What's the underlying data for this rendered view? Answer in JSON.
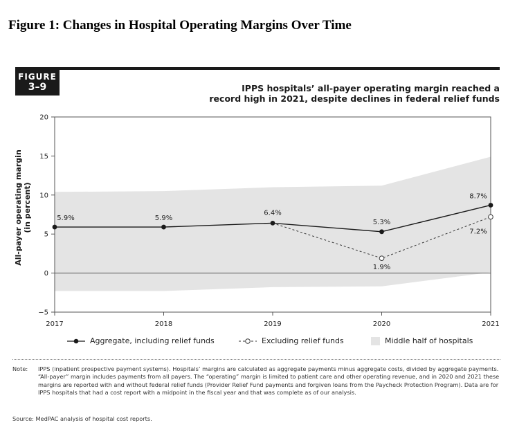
{
  "caption": "Figure 1: Changes in Hospital Operating Margins Over Time",
  "badge": {
    "line1": "FIGURE",
    "line2": "3–9"
  },
  "headline": {
    "line1": "IPPS hospitals’ all-payer operating margin reached a",
    "line2": "record high in 2021, despite declines in federal relief funds"
  },
  "colors": {
    "aggregate": "#1a1a1a",
    "excluding": "#333333",
    "band": "#e4e4e4",
    "zero_line": "#555555",
    "frame": "#555555"
  },
  "chart_data": {
    "type": "line",
    "x": [
      2017,
      2018,
      2019,
      2020,
      2021
    ],
    "xlim": [
      2017,
      2021
    ],
    "ylim": [
      -5,
      20
    ],
    "yticks": [
      -5,
      0,
      5,
      10,
      15,
      20
    ],
    "ytick_labels": [
      "−5",
      "0",
      "5",
      "10",
      "15",
      "20"
    ],
    "ylabel": [
      "All-payer operating margin",
      "(in percent)"
    ],
    "grid": false,
    "legend_position": "bottom",
    "band": {
      "name": "Middle half of hospitals",
      "upper": [
        10.4,
        10.5,
        11.0,
        11.2,
        14.9
      ],
      "lower": [
        -2.3,
        -2.3,
        -1.8,
        -1.7,
        0.1
      ]
    },
    "series": [
      {
        "name": "Aggregate, including relief funds",
        "style": "solid",
        "x": [
          2017,
          2018,
          2019,
          2020,
          2021
        ],
        "values": [
          5.9,
          5.9,
          6.4,
          5.3,
          8.7
        ],
        "labels": [
          "5.9%",
          "5.9%",
          "6.4%",
          "5.3%",
          "8.7%"
        ]
      },
      {
        "name": "Excluding relief funds",
        "style": "dashed",
        "x": [
          2019,
          2020,
          2021
        ],
        "values": [
          6.4,
          1.9,
          7.2
        ],
        "labels": [
          "",
          "1.9%",
          "7.2%"
        ]
      }
    ]
  },
  "note": {
    "label": "Note:",
    "text": "IPPS (inpatient prospective payment systems). Hospitals’ margins are calculated as aggregate payments minus aggregate costs, divided by aggregate payments. “All-payer” margin includes payments from all payers. The “operating” margin is limited to patient care and other operating revenue, and in 2020 and 2021 these margins are reported with and without federal relief funds (Provider Relief Fund payments and forgiven loans from the Paycheck Protection Program). Data are for IPPS hospitals that had a cost report with a midpoint in the fiscal year and that was complete as of our analysis."
  },
  "source": "Source: MedPAC analysis of hospital cost reports."
}
